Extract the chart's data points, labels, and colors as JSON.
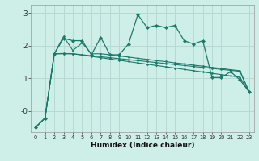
{
  "xlabel": "Humidex (Indice chaleur)",
  "bg_color": "#ceeee8",
  "grid_color": "#b8d8d4",
  "line_color": "#1a7a6a",
  "xlim": [
    -0.5,
    23.5
  ],
  "ylim": [
    -0.65,
    3.25
  ],
  "yticks": [
    0,
    1,
    2,
    3
  ],
  "ytick_labels": [
    "-0",
    "1",
    "2",
    "3"
  ],
  "xticks": [
    0,
    1,
    2,
    3,
    4,
    5,
    6,
    7,
    8,
    9,
    10,
    11,
    12,
    13,
    14,
    15,
    16,
    17,
    18,
    19,
    20,
    21,
    22,
    23
  ],
  "s1_x": [
    0,
    1,
    2,
    3,
    4,
    5,
    6,
    7,
    8,
    9,
    10,
    11,
    12,
    13,
    14,
    15,
    16,
    17,
    18,
    19,
    20,
    21,
    22,
    23
  ],
  "s1_y": [
    -0.5,
    -0.22,
    1.75,
    2.22,
    2.15,
    2.15,
    1.72,
    2.25,
    1.72,
    1.72,
    2.05,
    2.95,
    2.55,
    2.62,
    2.55,
    2.62,
    2.15,
    2.05,
    2.15,
    1.02,
    1.02,
    1.2,
    0.95,
    0.58
  ],
  "s2_x": [
    0,
    1,
    2,
    3,
    4,
    5,
    6,
    7,
    8,
    9,
    10,
    11,
    12,
    13,
    14,
    15,
    16,
    17,
    18,
    19,
    20,
    21,
    22,
    23
  ],
  "s2_y": [
    -0.5,
    -0.22,
    1.75,
    1.75,
    1.75,
    1.72,
    1.69,
    1.66,
    1.63,
    1.6,
    1.57,
    1.54,
    1.51,
    1.48,
    1.45,
    1.42,
    1.39,
    1.36,
    1.33,
    1.3,
    1.27,
    1.24,
    1.21,
    0.58
  ],
  "s3_x": [
    0,
    1,
    2,
    3,
    4,
    5,
    6,
    7,
    8,
    9,
    10,
    11,
    12,
    13,
    14,
    15,
    16,
    17,
    18,
    19,
    20,
    21,
    22,
    23
  ],
  "s3_y": [
    -0.5,
    -0.22,
    1.75,
    1.76,
    1.75,
    1.71,
    1.67,
    1.63,
    1.59,
    1.55,
    1.51,
    1.47,
    1.43,
    1.39,
    1.35,
    1.31,
    1.27,
    1.23,
    1.19,
    1.15,
    1.11,
    1.07,
    1.03,
    0.58
  ],
  "s4_x": [
    0,
    1,
    2,
    3,
    4,
    5,
    6,
    7,
    8,
    9,
    10,
    11,
    12,
    13,
    14,
    15,
    16,
    17,
    18,
    19,
    20,
    21,
    22,
    23
  ],
  "s4_y": [
    -0.5,
    -0.22,
    1.75,
    2.28,
    1.85,
    2.08,
    1.75,
    1.75,
    1.72,
    1.68,
    1.65,
    1.61,
    1.58,
    1.54,
    1.51,
    1.47,
    1.44,
    1.4,
    1.37,
    1.33,
    1.3,
    1.26,
    1.23,
    0.58
  ]
}
